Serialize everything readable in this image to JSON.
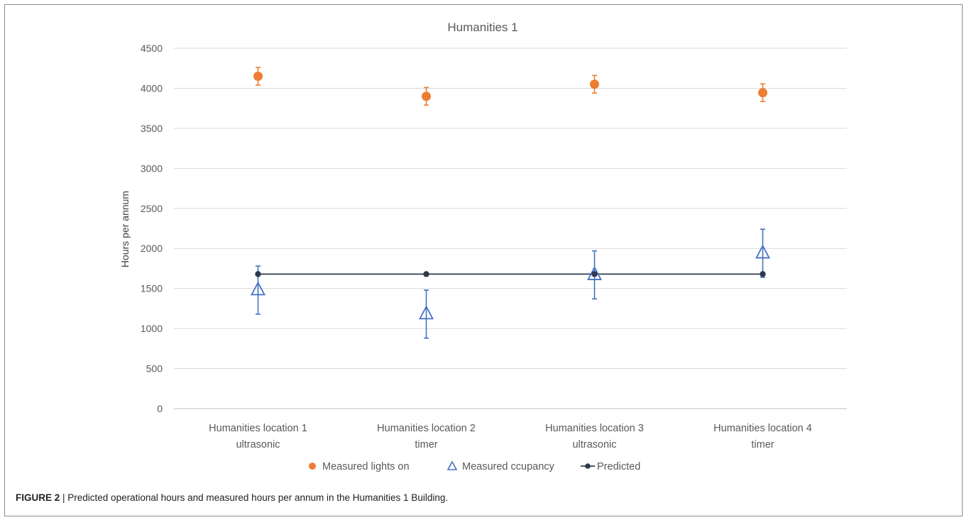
{
  "chart_data": {
    "type": "scatter",
    "title": "Humanities 1",
    "ylabel": "Hours per annum",
    "xlabel": "",
    "ylim": [
      0,
      4500
    ],
    "yticks": [
      0,
      500,
      1000,
      1500,
      2000,
      2500,
      3000,
      3500,
      4000,
      4500
    ],
    "grid": true,
    "legend_position": "bottom",
    "categories": [
      [
        "Humanities location 1",
        "ultrasonic"
      ],
      [
        "Humanities location 2",
        "timer"
      ],
      [
        "Humanities location 3",
        "ultrasonic"
      ],
      [
        "Humanities location 4",
        "timer"
      ]
    ],
    "series": [
      {
        "name": "Measured lights on",
        "marker": "circle",
        "color": "#ED7D31",
        "values": [
          4150,
          3900,
          4050,
          3945
        ],
        "error_plus": [
          110,
          110,
          110,
          110
        ],
        "error_minus": [
          110,
          110,
          110,
          110
        ]
      },
      {
        "name": "Measured ccupancy",
        "marker": "triangle-open",
        "color": "#4472C4",
        "values": [
          1480,
          1180,
          1670,
          1940
        ],
        "error_plus": [
          300,
          300,
          300,
          300
        ],
        "error_minus": [
          300,
          300,
          300,
          300
        ]
      },
      {
        "name": "Predicted",
        "marker": "dot-line",
        "color": "#2F3B4C",
        "values": [
          1680,
          1680,
          1680,
          1680
        ]
      }
    ]
  },
  "caption": {
    "label": "FIGURE 2",
    "text": " | Predicted operational hours and measured hours per annum in the Humanities 1 Building."
  }
}
